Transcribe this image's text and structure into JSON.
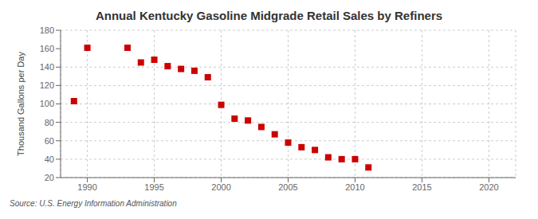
{
  "chart_data": {
    "type": "scatter",
    "title": "Annual Kentucky Gasoline Midgrade Retail Sales by Refiners",
    "ylabel": "Thousand Gallons per Day",
    "annotations": [
      "Source: U.S. Energy Information Administration"
    ],
    "x": [
      1989,
      1990,
      1993,
      1994,
      1995,
      1996,
      1997,
      1998,
      1999,
      2000,
      2001,
      2002,
      2003,
      2004,
      2005,
      2006,
      2007,
      2008,
      2009,
      2010,
      2011
    ],
    "values": [
      103,
      161,
      161,
      145,
      148,
      141,
      138,
      136,
      129,
      99,
      84,
      82,
      75,
      67,
      58,
      53,
      50,
      42,
      40,
      40,
      31
    ],
    "color": "#cc0000",
    "marker": "square",
    "xlim": [
      1988,
      2022
    ],
    "ylim": [
      20,
      180
    ],
    "xticks": [
      1990,
      1995,
      2000,
      2005,
      2010,
      2015,
      2020
    ],
    "yticks": [
      20,
      40,
      60,
      80,
      100,
      120,
      140,
      160,
      180
    ],
    "grid": true
  }
}
